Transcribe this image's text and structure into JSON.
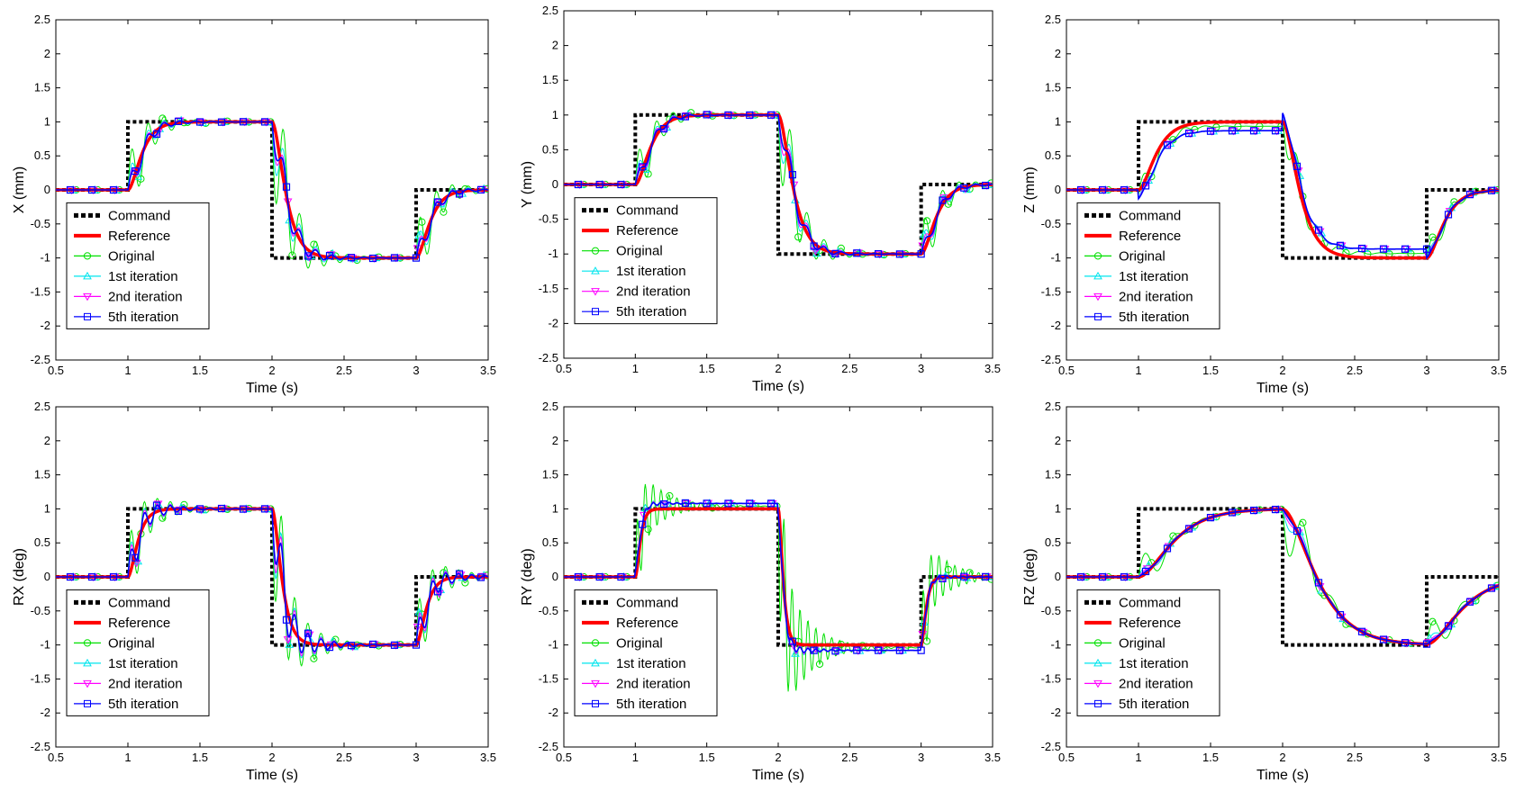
{
  "chart_data": [
    {
      "type": "line",
      "key": "X",
      "ylabel": "X  (mm)",
      "xlabel": "Time  (s)",
      "xlim": [
        0.5,
        3.5
      ],
      "ylim": [
        -2.5,
        2.5
      ],
      "xticks": [
        "0.5",
        "1",
        "1.5",
        "2",
        "2.5",
        "3",
        "3.5"
      ],
      "yticks": [
        "-2.5",
        "-2",
        "-1.5",
        "-1",
        "-0.5",
        "0",
        "0.5",
        "1",
        "1.5",
        "2",
        "2.5"
      ],
      "legend_position": "bottom-left",
      "response": {
        "rise": 0.055,
        "final_scale": 1.0,
        "orig_amp": 0.6,
        "first_amp": 0.35,
        "second_amp": 0.25,
        "fifth_amp": 0.2,
        "freq": 9.0
      }
    },
    {
      "type": "line",
      "key": "Y",
      "ylabel": "Y  (mm)",
      "xlabel": "Time  (s)",
      "xlim": [
        0.5,
        3.5
      ],
      "ylim": [
        -2.5,
        2.5
      ],
      "xticks": [
        "0.5",
        "1",
        "1.5",
        "2",
        "2.5",
        "3",
        "3.5"
      ],
      "yticks": [
        "-2.5",
        "-2",
        "-1.5",
        "-1",
        "-0.5",
        "0",
        "0.5",
        "1",
        "1.5",
        "2",
        "2.5"
      ],
      "legend_position": "bottom-left",
      "response": {
        "rise": 0.06,
        "final_scale": 1.0,
        "orig_amp": 0.5,
        "first_amp": 0.3,
        "second_amp": 0.22,
        "fifth_amp": 0.15,
        "freq": 8.5
      }
    },
    {
      "type": "line",
      "key": "Z",
      "ylabel": "Z  (mm)",
      "xlabel": "Time  (s)",
      "xlim": [
        0.5,
        3.5
      ],
      "ylim": [
        -2.5,
        2.5
      ],
      "xticks": [
        "0.5",
        "1",
        "1.5",
        "2",
        "2.5",
        "3",
        "3.5"
      ],
      "yticks": [
        "-2.5",
        "-2",
        "-1.5",
        "-1",
        "-0.5",
        "0",
        "0.5",
        "1",
        "1.5",
        "2",
        "2.5"
      ],
      "legend_position": "bottom-left",
      "response": {
        "rise": 0.07,
        "final_scale": 0.87,
        "orig_amp": 0.25,
        "first_amp": 0.12,
        "second_amp": 0.08,
        "fifth_amp": 0.05,
        "freq": 7.0
      }
    },
    {
      "type": "line",
      "key": "RX",
      "ylabel": "RX  (deg)",
      "xlabel": "Time  (s)",
      "xlim": [
        0.5,
        3.5
      ],
      "ylim": [
        -2.5,
        2.5
      ],
      "xticks": [
        "0.5",
        "1",
        "1.5",
        "2",
        "2.5",
        "3",
        "3.5"
      ],
      "yticks": [
        "-2.5",
        "-2",
        "-1.5",
        "-1",
        "-0.5",
        "0",
        "0.5",
        "1",
        "1.5",
        "2",
        "2.5"
      ],
      "legend_position": "bottom-left",
      "response": {
        "rise": 0.04,
        "final_scale": 1.0,
        "orig_amp": 0.65,
        "first_amp": 0.45,
        "second_amp": 0.4,
        "fifth_amp": 0.32,
        "freq": 11.0
      }
    },
    {
      "type": "line",
      "key": "RY",
      "ylabel": "RY  (deg)",
      "xlabel": "Time  (s)",
      "xlim": [
        0.5,
        3.5
      ],
      "ylim": [
        -2.5,
        2.5
      ],
      "xticks": [
        "0.5",
        "1",
        "1.5",
        "2",
        "2.5",
        "3",
        "3.5"
      ],
      "yticks": [
        "-2.5",
        "-2",
        "-1.5",
        "-1",
        "-0.5",
        "0",
        "0.5",
        "1",
        "1.5",
        "2",
        "2.5"
      ],
      "legend_position": "bottom-left",
      "response": {
        "rise": 0.02,
        "final_scale": 1.08,
        "orig_amp": 0.7,
        "first_amp": 0.1,
        "second_amp": 0.08,
        "fifth_amp": 0.05,
        "freq": 18.0
      }
    },
    {
      "type": "line",
      "key": "RZ",
      "ylabel": "RZ  (deg)",
      "xlabel": "Time  (s)",
      "xlim": [
        0.5,
        3.5
      ],
      "ylim": [
        -2.5,
        2.5
      ],
      "xticks": [
        "0.5",
        "1",
        "1.5",
        "2",
        "2.5",
        "3",
        "3.5"
      ],
      "yticks": [
        "-2.5",
        "-2",
        "-1.5",
        "-1",
        "-0.5",
        "0",
        "0.5",
        "1",
        "1.5",
        "2",
        "2.5"
      ],
      "legend_position": "bottom-left",
      "response": {
        "rise": 0.14,
        "final_scale": 1.0,
        "orig_amp": 0.4,
        "first_amp": 0.15,
        "second_amp": 0.08,
        "fifth_amp": 0.04,
        "freq": 5.0
      }
    }
  ],
  "command_steps": {
    "times": [
      1,
      2,
      3
    ],
    "levels": [
      0,
      1,
      -1,
      0
    ]
  },
  "series": [
    {
      "name": "Command",
      "color": "#000000",
      "style": "dotted-thick",
      "marker": "none"
    },
    {
      "name": "Reference",
      "color": "#ff0000",
      "style": "solid-thick",
      "marker": "none"
    },
    {
      "name": "Original",
      "color": "#00e000",
      "style": "solid-thin",
      "marker": "circle"
    },
    {
      "name": "1st iteration",
      "color": "#00e5ee",
      "style": "solid-thin",
      "marker": "triangle-up"
    },
    {
      "name": "2nd iteration",
      "color": "#ff00ff",
      "style": "solid-thin",
      "marker": "triangle-down"
    },
    {
      "name": "5th iteration",
      "color": "#0000ff",
      "style": "solid",
      "marker": "square"
    }
  ]
}
